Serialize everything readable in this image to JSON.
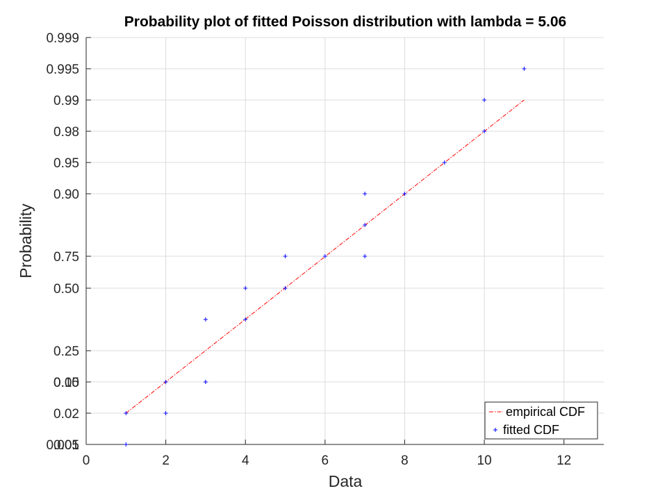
{
  "chart_data": {
    "type": "scatter",
    "title": "Probability plot of fitted Poisson distribution with lambda = 5.06",
    "xlabel": "Data",
    "ylabel": "Probability",
    "xlim": [
      0,
      13
    ],
    "x_ticks": [
      "0",
      "2",
      "4",
      "6",
      "8",
      "10",
      "12"
    ],
    "x_tick_values": [
      0,
      2,
      4,
      6,
      8,
      10,
      12
    ],
    "y_ticks": [
      "0.005",
      "0.01",
      "0.02",
      "0.05",
      "0.10",
      "0.25",
      "0.50",
      "0.75",
      "0.90",
      "0.95",
      "0.98",
      "0.99",
      "0.995",
      "0.999"
    ],
    "grid": true,
    "legend_position": "bottom-right",
    "series": [
      {
        "name": "empirical CDF",
        "style": "dash-dot line",
        "color": "#ff0000",
        "x": [
          1,
          11
        ],
        "y": [
          0.02,
          0.99
        ]
      },
      {
        "name": "fitted CDF",
        "style": "plus markers",
        "color": "#0000ff",
        "x": [
          1,
          1,
          2,
          2,
          3,
          3,
          3,
          4,
          4,
          5,
          5,
          6,
          7,
          7,
          7,
          8,
          9,
          10,
          10,
          11
        ],
        "y": [
          0.005,
          0.02,
          0.02,
          0.05,
          0.05,
          0.15,
          0.35,
          0.35,
          0.5,
          0.5,
          0.75,
          0.75,
          0.75,
          0.85,
          0.9,
          0.9,
          0.95,
          0.98,
          0.99,
          0.995
        ]
      }
    ]
  }
}
